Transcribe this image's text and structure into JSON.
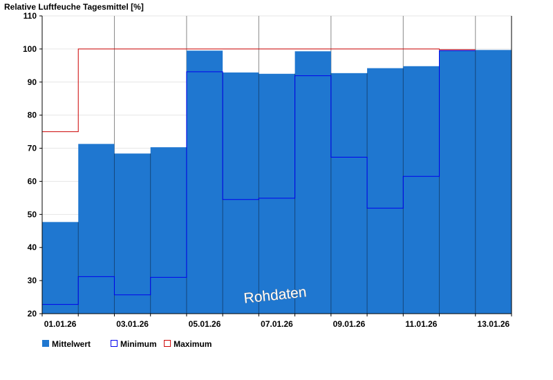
{
  "chart_data": {
    "type": "bar",
    "title": "Relative Luftfeuche Tagesmittel [%]",
    "xlabel": "",
    "ylabel": "",
    "ylim": [
      20,
      110
    ],
    "yticks": [
      20,
      30,
      40,
      50,
      60,
      70,
      80,
      90,
      100,
      110
    ],
    "categories": [
      "01.01.26",
      "02.01.26",
      "03.01.26",
      "04.01.26",
      "05.01.26",
      "06.01.26",
      "07.01.26",
      "08.01.26",
      "09.01.26",
      "10.01.26",
      "11.01.26",
      "12.01.26",
      "13.01.26"
    ],
    "xtick_labels": [
      "01.01.26",
      "03.01.26",
      "05.01.26",
      "07.01.26",
      "09.01.26",
      "11.01.26",
      "13.01.26"
    ],
    "series": [
      {
        "name": "Mittelwert",
        "kind": "bar",
        "color": "#1f77d0",
        "values": [
          47.7,
          71.3,
          68.4,
          70.3,
          99.5,
          92.9,
          92.5,
          99.3,
          92.7,
          94.2,
          94.8,
          99.5,
          99.7
        ]
      },
      {
        "name": "Minimum",
        "kind": "step",
        "color": "#0000ee",
        "values": [
          22.8,
          31.2,
          25.7,
          31.0,
          93.1,
          54.5,
          54.9,
          91.9,
          67.3,
          51.9,
          61.5,
          99.5,
          null
        ]
      },
      {
        "name": "Maximum",
        "kind": "step",
        "color": "#cc0000",
        "values": [
          75.0,
          100,
          100,
          100,
          100,
          100,
          100,
          100,
          100,
          100,
          100,
          99.8,
          null
        ]
      }
    ],
    "grid": true,
    "legend_position": "bottom-left",
    "watermark": "Rohdaten"
  }
}
